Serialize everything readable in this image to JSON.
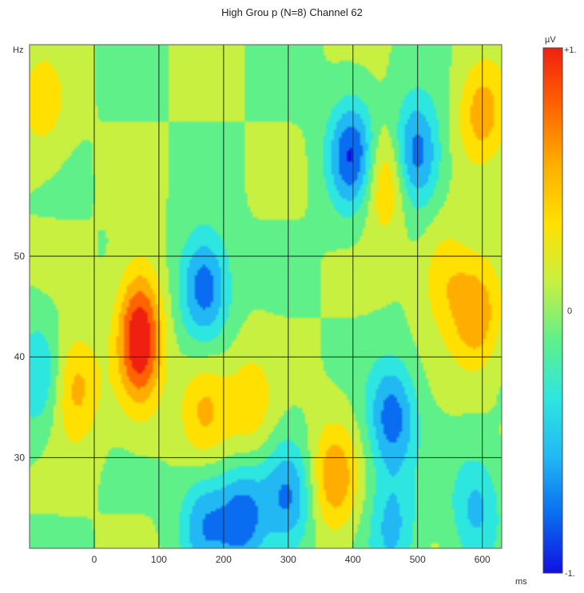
{
  "chart_data": {
    "type": "heatmap",
    "title": "High Grou p (N=8) Channel 62",
    "xlabel": "ms",
    "ylabel": "Hz",
    "xlim": [
      -100,
      630
    ],
    "ylim": [
      21,
      71
    ],
    "x_ticks": [
      0,
      100,
      200,
      300,
      400,
      500,
      600
    ],
    "y_ticks": [
      30,
      40,
      50
    ],
    "grid": true,
    "colorbar": {
      "unit": "µV",
      "max_label": "+1.",
      "mid_label": "0",
      "min_label": "-1.",
      "range": [
        -1,
        1
      ],
      "colors": [
        "#1010e0",
        "#0a6cf0",
        "#22b8f4",
        "#2ee6e0",
        "#5ff08a",
        "#c8f040",
        "#ffe000",
        "#ffae00",
        "#ff6400",
        "#f02010"
      ]
    },
    "blobs": [
      {
        "x": 70,
        "y": 42,
        "value": 1.0
      },
      {
        "x": -30,
        "y": 37,
        "value": 0.5
      },
      {
        "x": 170,
        "y": 47,
        "value": -0.75
      },
      {
        "x": 230,
        "y": 24,
        "value": -0.7
      },
      {
        "x": 170,
        "y": 23.5,
        "value": -0.55
      },
      {
        "x": 300,
        "y": 26,
        "value": -0.6
      },
      {
        "x": 460,
        "y": 34,
        "value": -0.7
      },
      {
        "x": 400,
        "y": 60,
        "value": -0.85
      },
      {
        "x": 495,
        "y": 60,
        "value": -0.8
      },
      {
        "x": 450,
        "y": 58,
        "value": 0.6
      },
      {
        "x": 370,
        "y": 28,
        "value": 0.55
      },
      {
        "x": 170,
        "y": 35,
        "value": 0.45
      },
      {
        "x": 240,
        "y": 35,
        "value": 0.35
      },
      {
        "x": 590,
        "y": 44,
        "value": 0.55
      },
      {
        "x": 600,
        "y": 64,
        "value": 0.5
      },
      {
        "x": -80,
        "y": 65,
        "value": 0.3
      },
      {
        "x": -85,
        "y": 38,
        "value": -0.4
      },
      {
        "x": 540,
        "y": 48,
        "value": 0.35
      },
      {
        "x": 590,
        "y": 25,
        "value": -0.45
      },
      {
        "x": 460,
        "y": 23,
        "value": -0.45
      }
    ]
  }
}
